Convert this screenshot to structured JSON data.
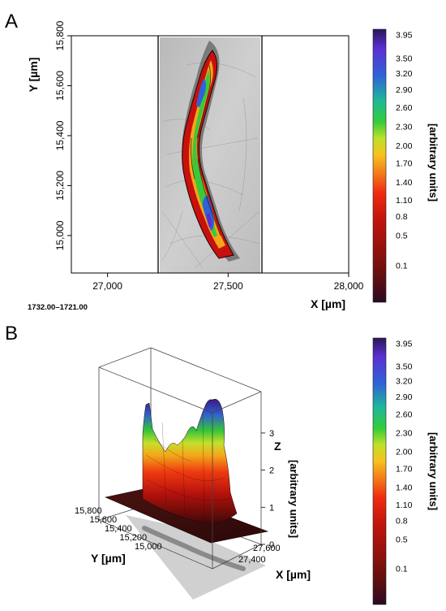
{
  "panel_a": {
    "letter": "A",
    "footer_text": "1732.00–1721.00"
  },
  "panel_b": {
    "letter": "B"
  },
  "colorbar": {
    "label": "[arbitrary units]",
    "ticks": [
      "3.95",
      "3.50",
      "3.20",
      "2.90",
      "2.60",
      "2.30",
      "2.00",
      "1.70",
      "1.40",
      "1.10",
      "0.8",
      "0.5",
      "0.1"
    ],
    "colors": [
      "#2a0a24",
      "#5a0f10",
      "#8c120c",
      "#c0140b",
      "#ee2b10",
      "#f4781a",
      "#f6c21e",
      "#bfe02a",
      "#35cc3a",
      "#1fb79a",
      "#2f62d6",
      "#5a30d2",
      "#2a1658"
    ]
  },
  "chart_data": [
    {
      "type": "heatmap",
      "title": "",
      "xlabel": "X [µm]",
      "ylabel": "Y [µm]",
      "xlim": [
        26850,
        28000
      ],
      "ylim": [
        14850,
        15800
      ],
      "x_ticks": [
        "27,000",
        "27,500",
        "28,000"
      ],
      "x_tick_values": [
        27000,
        27500,
        28000
      ],
      "y_ticks": [
        "15,800",
        "15,600",
        "15,400",
        "15,200",
        "15,000"
      ],
      "y_tick_values": [
        15800,
        15600,
        15400,
        15200,
        15000
      ],
      "image_extent_x": [
        27220,
        27645
      ],
      "image_extent_y": [
        14855,
        15795
      ],
      "color_scale": [
        0.1,
        3.95
      ],
      "grid": false
    },
    {
      "type": "surface",
      "title": "",
      "xlabel": "X [µm]",
      "ylabel": "Y [µm]",
      "zlabel": "Z [arbitrary units]",
      "x_ticks": [
        "27,400",
        "27,600"
      ],
      "y_ticks": [
        "15,800",
        "15,600",
        "15,400",
        "15,200",
        "15,000"
      ],
      "z_ticks": [
        "0",
        "1",
        "2",
        "3"
      ],
      "zlim": [
        0,
        3.95
      ]
    }
  ]
}
